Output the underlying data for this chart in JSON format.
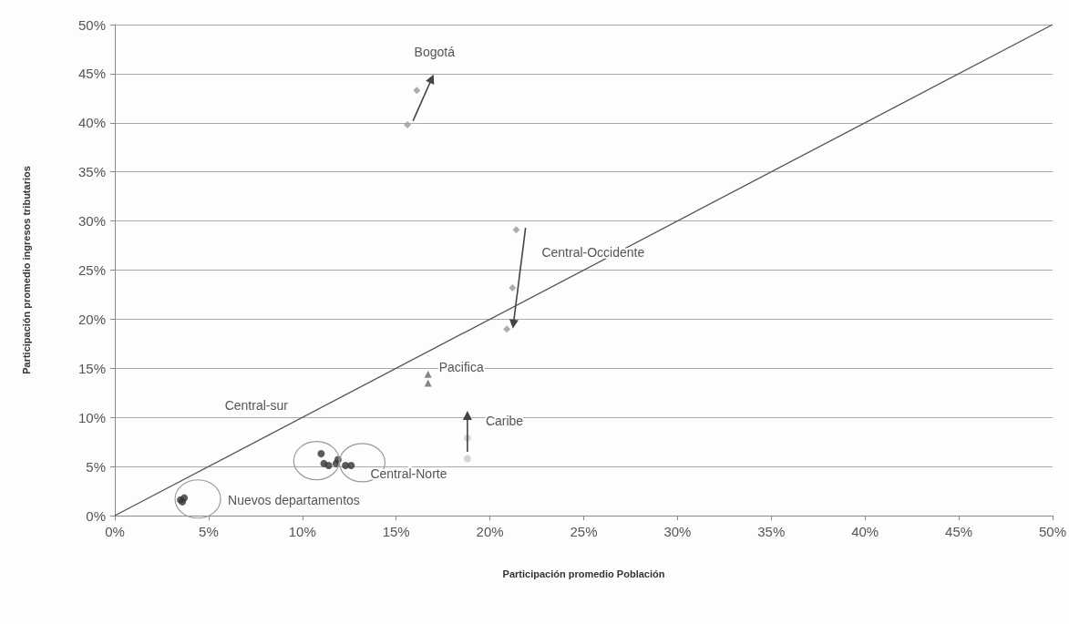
{
  "chart_data": {
    "type": "scatter",
    "xlabel": "Participación promedio Población",
    "ylabel": "Participación promedio ingresos tributarios",
    "xlim": [
      0,
      50
    ],
    "xticks": [
      {
        "value": 0,
        "label": "0%"
      },
      {
        "value": 5,
        "label": "5%"
      },
      {
        "value": 10,
        "label": "10%"
      },
      {
        "value": 15,
        "label": "15%"
      },
      {
        "value": 20,
        "label": "20%"
      },
      {
        "value": 25,
        "label": "25%"
      },
      {
        "value": 30,
        "label": "30%"
      },
      {
        "value": 35,
        "label": "35%"
      },
      {
        "value": 40,
        "label": "40%"
      },
      {
        "value": 45,
        "label": "45%"
      },
      {
        "value": 50,
        "label": "50%"
      }
    ],
    "ylim": [
      0,
      50
    ],
    "yticks": [
      {
        "value": 0,
        "label": "0%"
      },
      {
        "value": 5,
        "label": "5%"
      },
      {
        "value": 10,
        "label": "10%"
      },
      {
        "value": 15,
        "label": "15%"
      },
      {
        "value": 20,
        "label": "20%"
      },
      {
        "value": 25,
        "label": "25%"
      },
      {
        "value": 30,
        "label": "30%"
      },
      {
        "value": 35,
        "label": "35%"
      },
      {
        "value": 40,
        "label": "40%"
      },
      {
        "value": 45,
        "label": "45%"
      },
      {
        "value": 50,
        "label": "50%"
      }
    ],
    "grid": "y",
    "series": [
      {
        "type": "line",
        "color": "#555555",
        "marker": "none",
        "x": [
          0,
          50
        ],
        "values": [
          0,
          50
        ]
      },
      {
        "color": "#999999",
        "marker": "diamond",
        "x": [
          15.6,
          16.1
        ],
        "values": [
          39.8,
          43.3
        ]
      },
      {
        "color": "#999999",
        "marker": "diamond",
        "x": [
          21.4,
          21.2,
          20.9
        ],
        "values": [
          29.1,
          23.2,
          19.0
        ]
      },
      {
        "color": "#666666",
        "marker": "triangle",
        "x": [
          16.7,
          16.7
        ],
        "values": [
          14.4,
          13.5
        ]
      },
      {
        "color": "#cccccc",
        "marker": "circle",
        "x": [
          18.8,
          18.8
        ],
        "values": [
          5.8,
          7.9
        ]
      },
      {
        "color": "#333333",
        "marker": "circle",
        "x": [
          11.0,
          11.15,
          11.4,
          11.8
        ],
        "values": [
          6.3,
          5.3,
          5.1,
          5.3
        ]
      },
      {
        "color": "#333333",
        "marker": "circle",
        "x": [
          11.9,
          12.3,
          12.6
        ],
        "values": [
          5.7,
          5.1,
          5.1
        ]
      },
      {
        "color": "#333333",
        "marker": "circle",
        "x": [
          3.5,
          3.7,
          3.6
        ],
        "values": [
          1.6,
          1.8,
          1.4
        ]
      },
      {
        "type": "line",
        "color": "#444444",
        "marker": "triangle",
        "x": [
          15.9,
          16.9
        ],
        "values": [
          40.2,
          44.5
        ]
      },
      {
        "type": "line",
        "color": "#444444",
        "marker": "triangle",
        "x": [
          21.9,
          21.25
        ],
        "values": [
          29.3,
          19.5
        ]
      },
      {
        "type": "line",
        "color": "#444444",
        "marker": "triangle",
        "x": [
          18.8,
          18.8
        ],
        "values": [
          6.5,
          10.2
        ]
      }
    ],
    "annotations": [
      "Bogotá",
      "Central-Occidente",
      "Pacifica",
      "Caribe",
      "Central-sur",
      "Central-Norte",
      "Nuevos departamentos"
    ]
  }
}
